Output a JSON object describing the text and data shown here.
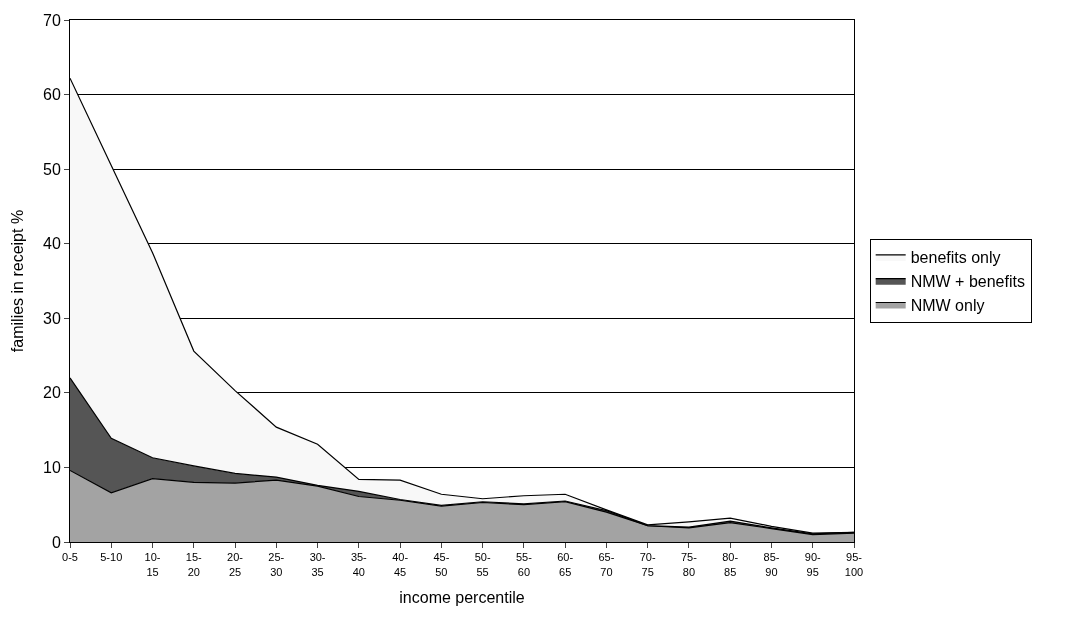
{
  "chart_data": {
    "type": "area",
    "stacked": true,
    "xlabel": "income percentile",
    "ylabel": "families in receipt %",
    "categories": [
      "0-5",
      "5-10",
      "10-15",
      "15-20",
      "20-25",
      "25-30",
      "30-35",
      "35-40",
      "40-45",
      "45-50",
      "50-55",
      "55-60",
      "60-65",
      "65-70",
      "70-75",
      "75-80",
      "80-85",
      "85-90",
      "90-95",
      "95-100"
    ],
    "series": [
      {
        "name": "NMW only",
        "color": "#a3a3a3",
        "values": [
          9.6,
          6.6,
          8.5,
          8.0,
          7.9,
          8.3,
          7.5,
          6.1,
          5.6,
          4.8,
          5.3,
          5.0,
          5.4,
          4.0,
          2.2,
          1.9,
          2.6,
          1.8,
          1.0,
          1.2
        ]
      },
      {
        "name": "NMW + benefits",
        "color": "#555555",
        "values": [
          12.4,
          7.3,
          2.8,
          2.2,
          1.3,
          0.4,
          0.1,
          0.7,
          0.1,
          0.1,
          0.1,
          0.1,
          0.1,
          0.2,
          0,
          0.1,
          0.2,
          0.1,
          0.1,
          0.1
        ]
      },
      {
        "name": "benefits only",
        "color": "#f8f8f8",
        "values": [
          40.2,
          36.6,
          27.5,
          15.4,
          11.1,
          6.7,
          5.5,
          1.6,
          2.6,
          1.5,
          0.4,
          1.1,
          0.9,
          0.1,
          0.1,
          0.7,
          0.4,
          0.2,
          0.1,
          0
        ]
      }
    ],
    "ylim": [
      0,
      70
    ],
    "yticks": [
      0,
      10,
      20,
      30,
      40,
      50,
      60,
      70
    ],
    "grid": "y",
    "legend": "right"
  }
}
